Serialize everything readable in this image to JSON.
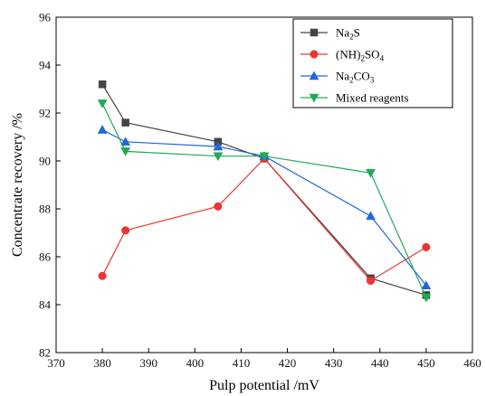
{
  "chart_data": {
    "type": "line",
    "xlabel": "Pulp potential /mV",
    "ylabel": "Concentrate recovery /%",
    "xlim": [
      370,
      460
    ],
    "ylim": [
      82,
      96
    ],
    "xticks": [
      370,
      380,
      390,
      400,
      410,
      420,
      430,
      440,
      450,
      460
    ],
    "yticks": [
      82,
      84,
      86,
      88,
      90,
      92,
      94,
      96
    ],
    "grid": false,
    "legend_position": "top-right",
    "series": [
      {
        "name": "Na2S",
        "name_parts": [
          {
            "t": "Na"
          },
          {
            "t": "2",
            "sub": true
          },
          {
            "t": "S"
          }
        ],
        "color": "#444444",
        "marker": "square",
        "x": [
          380,
          385,
          405,
          415,
          438,
          450
        ],
        "y": [
          93.2,
          91.6,
          90.8,
          90.1,
          85.1,
          84.4
        ]
      },
      {
        "name": "(NH)2SO4",
        "name_parts": [
          {
            "t": "(NH)"
          },
          {
            "t": "2",
            "sub": true
          },
          {
            "t": "SO"
          },
          {
            "t": "4",
            "sub": true
          }
        ],
        "color": "#ee3333",
        "marker": "circle",
        "x": [
          380,
          385,
          405,
          415,
          438,
          450
        ],
        "y": [
          85.2,
          87.1,
          88.1,
          90.1,
          85.0,
          86.4
        ]
      },
      {
        "name": "Na2CO3",
        "name_parts": [
          {
            "t": "Na"
          },
          {
            "t": "2",
            "sub": true
          },
          {
            "t": "CO"
          },
          {
            "t": "3",
            "sub": true
          }
        ],
        "color": "#2266dd",
        "marker": "triangle-up",
        "x": [
          380,
          385,
          405,
          415,
          438,
          450
        ],
        "y": [
          91.3,
          90.8,
          90.6,
          90.2,
          87.7,
          84.8
        ]
      },
      {
        "name": "Mixed reagents",
        "name_parts": [
          {
            "t": "Mixed reagents"
          }
        ],
        "color": "#22aa55",
        "marker": "triangle-down",
        "x": [
          380,
          385,
          405,
          415,
          438,
          450
        ],
        "y": [
          92.4,
          90.4,
          90.2,
          90.2,
          89.5,
          84.3
        ]
      }
    ]
  }
}
